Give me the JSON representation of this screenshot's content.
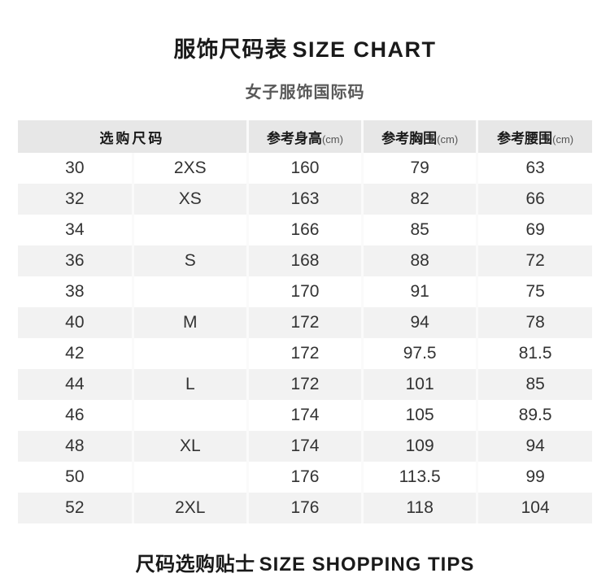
{
  "page": {
    "title_zh": "服饰尺码表",
    "title_en": "SIZE CHART",
    "subtitle": "女子服饰国际码",
    "footer_zh": "尺码选购贴士",
    "footer_en": "SIZE SHOPPING TIPS"
  },
  "colors": {
    "header_bg": "#e7e7e7",
    "stripe_bg": "#f2f2f2",
    "divider": "#fafafa",
    "title_text": "#1a1a1a",
    "subtitle_text": "#595959",
    "cell_text": "#333333"
  },
  "table": {
    "headers": {
      "size_group": "选购尺码",
      "height": {
        "label": "参考身高",
        "unit": "(cm)"
      },
      "bust": {
        "label": "参考胸围",
        "unit": "(cm)"
      },
      "waist": {
        "label": "参考腰围",
        "unit": "(cm)"
      }
    },
    "rows": [
      {
        "code": "30",
        "intl": "2XS",
        "height": "160",
        "bust": "79",
        "waist": "63"
      },
      {
        "code": "32",
        "intl": "XS",
        "height": "163",
        "bust": "82",
        "waist": "66"
      },
      {
        "code": "34",
        "intl": "",
        "height": "166",
        "bust": "85",
        "waist": "69"
      },
      {
        "code": "36",
        "intl": "S",
        "height": "168",
        "bust": "88",
        "waist": "72"
      },
      {
        "code": "38",
        "intl": "",
        "height": "170",
        "bust": "91",
        "waist": "75"
      },
      {
        "code": "40",
        "intl": "M",
        "height": "172",
        "bust": "94",
        "waist": "78"
      },
      {
        "code": "42",
        "intl": "",
        "height": "172",
        "bust": "97.5",
        "waist": "81.5"
      },
      {
        "code": "44",
        "intl": "L",
        "height": "172",
        "bust": "101",
        "waist": "85"
      },
      {
        "code": "46",
        "intl": "",
        "height": "174",
        "bust": "105",
        "waist": "89.5"
      },
      {
        "code": "48",
        "intl": "XL",
        "height": "174",
        "bust": "109",
        "waist": "94"
      },
      {
        "code": "50",
        "intl": "",
        "height": "176",
        "bust": "113.5",
        "waist": "99"
      },
      {
        "code": "52",
        "intl": "2XL",
        "height": "176",
        "bust": "118",
        "waist": "104"
      }
    ]
  }
}
